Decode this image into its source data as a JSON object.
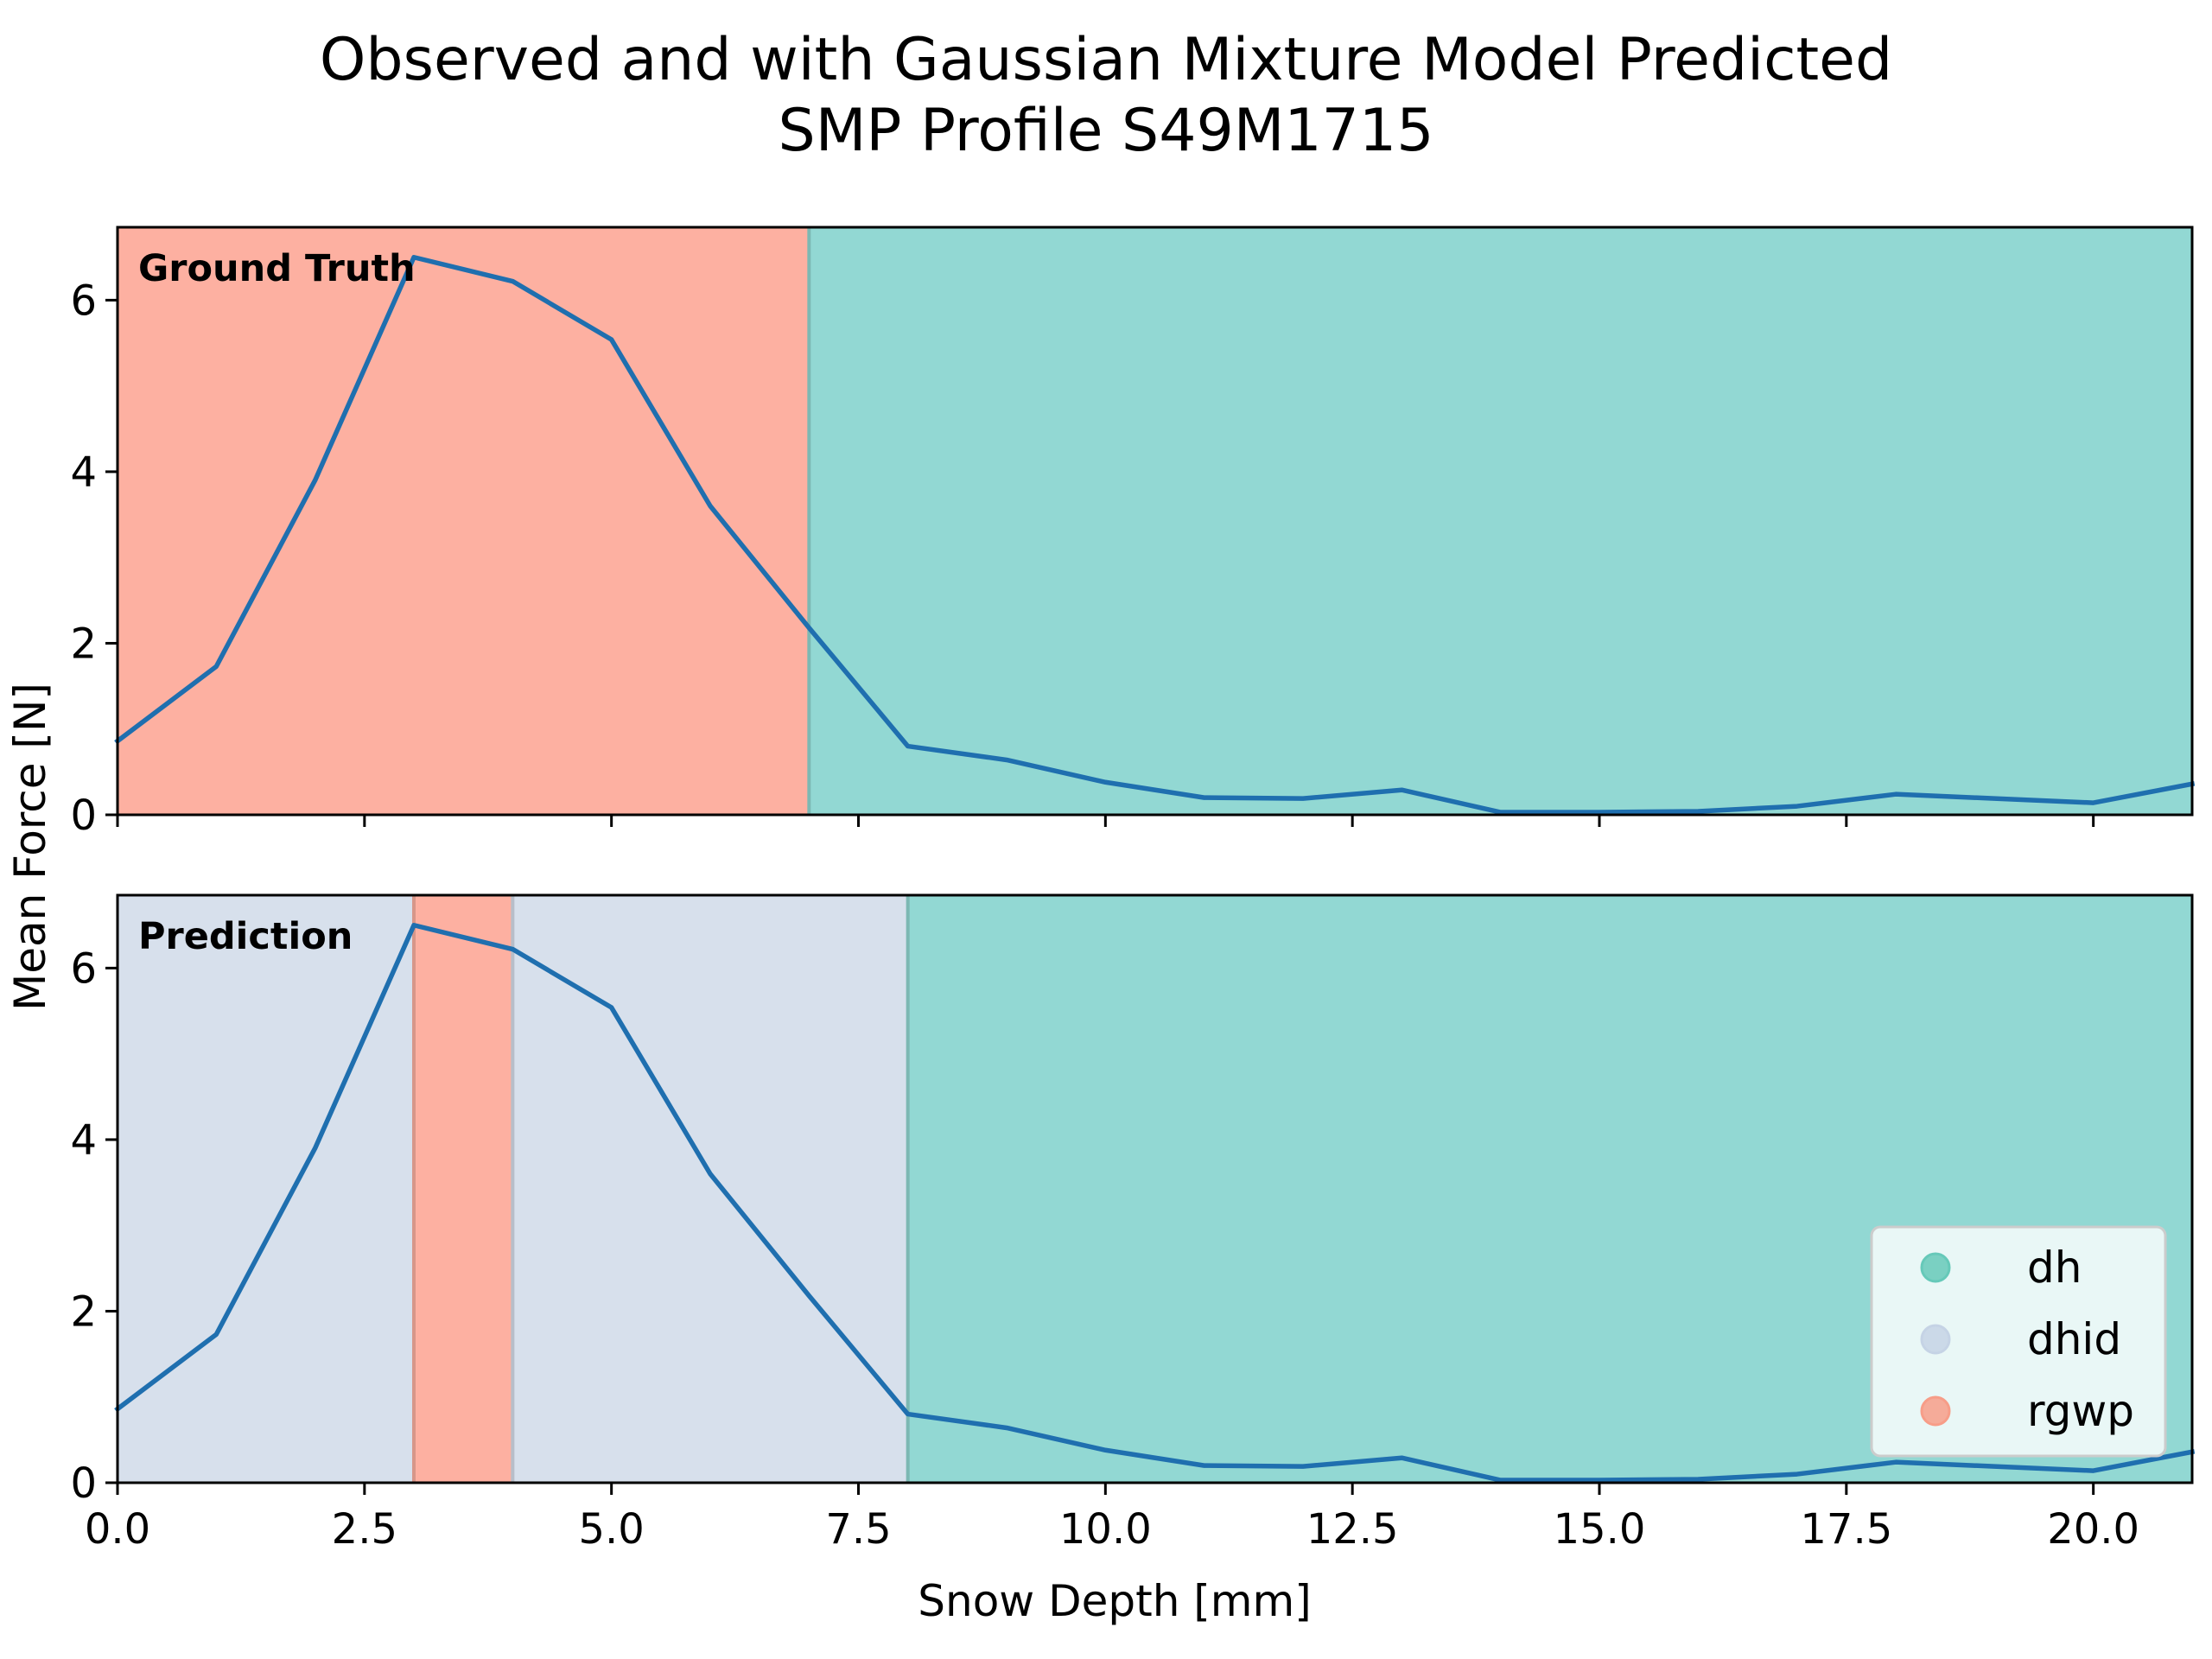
{
  "title_line1": "Observed and with Gaussian Mixture Model Predicted",
  "title_line2": "SMP Profile S49M1715",
  "xlabel": "Snow Depth [mm]",
  "ylabel": "Mean Force [N]",
  "colors": {
    "dh": "#92d8d3",
    "dhid": "#d7e0ec",
    "rgwp": "#fdb0a1",
    "line": "#1f6faf",
    "legend_dh": "#66c9b9",
    "legend_dhid": "#c5d3e5",
    "legend_rgwp": "#f79d88"
  },
  "legend": [
    {
      "label": "dh",
      "color_key": "legend_dh"
    },
    {
      "label": "dhid",
      "color_key": "legend_dhid"
    },
    {
      "label": "rgwp",
      "color_key": "legend_rgwp"
    }
  ],
  "chart_data": {
    "type": "line",
    "x": [
      0,
      1,
      2,
      3,
      4,
      5,
      6,
      7,
      8,
      9,
      10,
      11,
      12,
      13,
      14,
      15,
      16,
      17,
      18,
      19,
      20,
      21
    ],
    "y": [
      0.86,
      1.73,
      3.9,
      6.5,
      6.22,
      5.54,
      3.6,
      2.18,
      0.8,
      0.64,
      0.38,
      0.2,
      0.19,
      0.29,
      0.03,
      0.03,
      0.04,
      0.1,
      0.24,
      0.19,
      0.14,
      0.36
    ],
    "xlim": [
      0,
      21
    ],
    "ylim": [
      0,
      6.85
    ],
    "xticks": [
      0.0,
      2.5,
      5.0,
      7.5,
      10.0,
      12.5,
      15.0,
      17.5,
      20.0
    ],
    "xtick_labels": [
      "0.0",
      "2.5",
      "5.0",
      "7.5",
      "10.0",
      "12.5",
      "15.0",
      "17.5",
      "20.0"
    ],
    "yticks": [
      0,
      2,
      4,
      6
    ],
    "ytick_labels": [
      "0",
      "2",
      "4",
      "6"
    ],
    "panels": [
      {
        "label": "Ground Truth",
        "segments": [
          {
            "start": 0,
            "end": 7,
            "class": "rgwp"
          },
          {
            "start": 7,
            "end": 21,
            "class": "dh"
          }
        ]
      },
      {
        "label": "Prediction",
        "segments": [
          {
            "start": 0,
            "end": 3,
            "class": "dhid"
          },
          {
            "start": 3,
            "end": 4,
            "class": "rgwp"
          },
          {
            "start": 4,
            "end": 8,
            "class": "dhid"
          },
          {
            "start": 8,
            "end": 21,
            "class": "dh"
          }
        ]
      }
    ],
    "legend_position": "lower-right",
    "grid": false
  }
}
